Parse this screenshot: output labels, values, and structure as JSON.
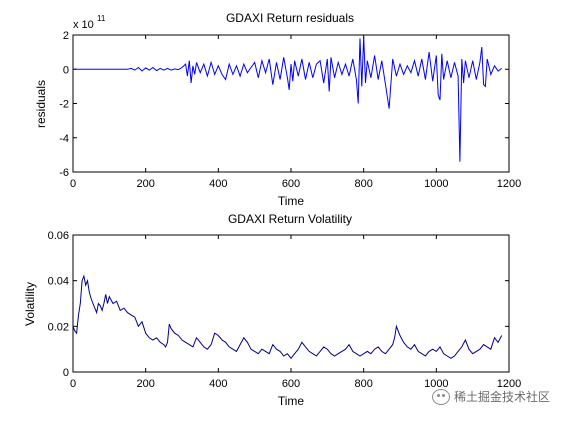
{
  "chart_data": [
    {
      "type": "line",
      "title": "GDAXI Return residuals",
      "xlabel": "Time",
      "ylabel": "residuals",
      "exponent_label": "x 10",
      "exponent_power": "11",
      "xlim": [
        0,
        1200
      ],
      "ylim": [
        -6,
        2
      ],
      "xticks": [
        0,
        200,
        400,
        600,
        800,
        1000,
        1200
      ],
      "yticks": [
        -6,
        -4,
        -2,
        0,
        2
      ],
      "color": "#0000ff",
      "series": [
        {
          "x": [
            0,
            150,
            160,
            170,
            180,
            190,
            200,
            210,
            220,
            230,
            240,
            250,
            260,
            270,
            280,
            290,
            300,
            310,
            315,
            320,
            325,
            330,
            335,
            340,
            350,
            360,
            370,
            380,
            390,
            400,
            410,
            420,
            430,
            440,
            450,
            460,
            470,
            480,
            490,
            500,
            510,
            520,
            530,
            540,
            550,
            560,
            570,
            580,
            590,
            595,
            600,
            605,
            610,
            620,
            630,
            640,
            650,
            660,
            670,
            680,
            690,
            700,
            705,
            710,
            720,
            730,
            740,
            750,
            760,
            770,
            780,
            785,
            790,
            795,
            800,
            805,
            810,
            820,
            830,
            840,
            850,
            860,
            870,
            880,
            890,
            900,
            910,
            920,
            930,
            940,
            950,
            960,
            970,
            980,
            990,
            1000,
            1005,
            1010,
            1015,
            1020,
            1030,
            1040,
            1050,
            1060,
            1065,
            1070,
            1075,
            1080,
            1090,
            1100,
            1110,
            1120,
            1125,
            1130,
            1135,
            1140,
            1150,
            1160,
            1170,
            1180
          ],
          "values": [
            0,
            0,
            0.05,
            -0.05,
            0.1,
            -0.1,
            0.08,
            -0.05,
            0.1,
            -0.08,
            0.05,
            -0.05,
            0.05,
            -0.05,
            0.02,
            -0.02,
            0.1,
            0.3,
            -0.4,
            0.5,
            -0.8,
            0.2,
            -0.3,
            0.4,
            -0.2,
            0.3,
            -0.4,
            0.4,
            -0.3,
            0.2,
            -0.3,
            -0.6,
            0.3,
            -0.3,
            0.2,
            -0.4,
            0.3,
            -0.2,
            0.1,
            0.4,
            -0.5,
            0.5,
            -0.2,
            0.6,
            -0.9,
            0.4,
            -0.6,
            0.7,
            -0.5,
            -1.2,
            0.3,
            -0.7,
            0.5,
            -0.4,
            0.6,
            -0.6,
            0.4,
            -0.5,
            0.3,
            0.5,
            -0.8,
            0.6,
            -1.3,
            0.7,
            -0.5,
            0.4,
            -0.3,
            0.3,
            -0.4,
            0.6,
            -0.6,
            -2.0,
            1.8,
            -1.0,
            1.9,
            -0.8,
            0.5,
            -0.5,
            0.8,
            -0.6,
            0.5,
            -0.9,
            -2.3,
            0.6,
            -0.4,
            0.3,
            -0.3,
            0.2,
            -0.2,
            0.5,
            -0.4,
            0.6,
            -0.6,
            1.0,
            -0.7,
            0.8,
            -1.5,
            -1.8,
            0.9,
            -0.6,
            0.5,
            -0.5,
            0.4,
            -0.4,
            -5.4,
            0.6,
            -0.8,
            0.5,
            -0.5,
            0.5,
            -0.6,
            0.4,
            1.3,
            -0.9,
            -1.0,
            0.6,
            -0.3,
            0.2,
            -0.1,
            0.05
          ]
        }
      ]
    },
    {
      "type": "line",
      "title": "GDAXI Return Volatility",
      "xlabel": "Time",
      "ylabel": "Volatility",
      "xlim": [
        0,
        1200
      ],
      "ylim": [
        0,
        0.06
      ],
      "xticks": [
        0,
        200,
        400,
        600,
        800,
        1000,
        1200
      ],
      "yticks": [
        0,
        0.02,
        0.04,
        0.06
      ],
      "ytick_labels": [
        "0",
        "0.02",
        "0.04",
        "0.06"
      ],
      "color": "#00008b",
      "series": [
        {
          "x": [
            0,
            5,
            10,
            15,
            20,
            25,
            30,
            35,
            40,
            45,
            50,
            55,
            60,
            65,
            70,
            75,
            80,
            85,
            90,
            95,
            100,
            110,
            120,
            130,
            140,
            150,
            160,
            170,
            180,
            190,
            200,
            210,
            220,
            230,
            240,
            250,
            255,
            260,
            265,
            270,
            280,
            290,
            300,
            310,
            320,
            330,
            340,
            350,
            360,
            370,
            380,
            390,
            400,
            410,
            420,
            430,
            440,
            450,
            460,
            470,
            480,
            490,
            500,
            510,
            520,
            530,
            540,
            550,
            560,
            570,
            580,
            590,
            600,
            610,
            620,
            630,
            640,
            650,
            660,
            670,
            680,
            690,
            700,
            710,
            720,
            730,
            740,
            750,
            760,
            770,
            780,
            790,
            800,
            810,
            820,
            830,
            840,
            850,
            860,
            870,
            880,
            885,
            890,
            895,
            900,
            910,
            920,
            930,
            940,
            950,
            960,
            970,
            980,
            990,
            1000,
            1010,
            1020,
            1030,
            1040,
            1050,
            1060,
            1070,
            1080,
            1090,
            1100,
            1110,
            1120,
            1130,
            1140,
            1150,
            1160,
            1170,
            1180
          ],
          "values": [
            0.02,
            0.018,
            0.017,
            0.025,
            0.03,
            0.04,
            0.042,
            0.038,
            0.04,
            0.035,
            0.032,
            0.03,
            0.028,
            0.026,
            0.03,
            0.029,
            0.027,
            0.03,
            0.034,
            0.03,
            0.033,
            0.03,
            0.031,
            0.027,
            0.028,
            0.026,
            0.025,
            0.024,
            0.02,
            0.022,
            0.017,
            0.015,
            0.014,
            0.015,
            0.013,
            0.012,
            0.011,
            0.013,
            0.021,
            0.019,
            0.017,
            0.016,
            0.014,
            0.013,
            0.012,
            0.011,
            0.015,
            0.013,
            0.011,
            0.01,
            0.012,
            0.017,
            0.016,
            0.014,
            0.013,
            0.011,
            0.01,
            0.009,
            0.012,
            0.015,
            0.013,
            0.01,
            0.009,
            0.008,
            0.01,
            0.009,
            0.008,
            0.012,
            0.01,
            0.009,
            0.007,
            0.008,
            0.006,
            0.008,
            0.01,
            0.013,
            0.011,
            0.009,
            0.008,
            0.007,
            0.009,
            0.011,
            0.01,
            0.008,
            0.007,
            0.008,
            0.009,
            0.01,
            0.012,
            0.009,
            0.008,
            0.007,
            0.008,
            0.009,
            0.008,
            0.01,
            0.011,
            0.009,
            0.008,
            0.01,
            0.012,
            0.015,
            0.02,
            0.018,
            0.016,
            0.013,
            0.011,
            0.01,
            0.012,
            0.009,
            0.008,
            0.007,
            0.009,
            0.01,
            0.009,
            0.011,
            0.008,
            0.007,
            0.006,
            0.007,
            0.009,
            0.011,
            0.014,
            0.01,
            0.008,
            0.009,
            0.01,
            0.012,
            0.011,
            0.01,
            0.015,
            0.013,
            0.016
          ]
        }
      ]
    }
  ],
  "watermark": {
    "text": "稀土掘金技术社区"
  }
}
